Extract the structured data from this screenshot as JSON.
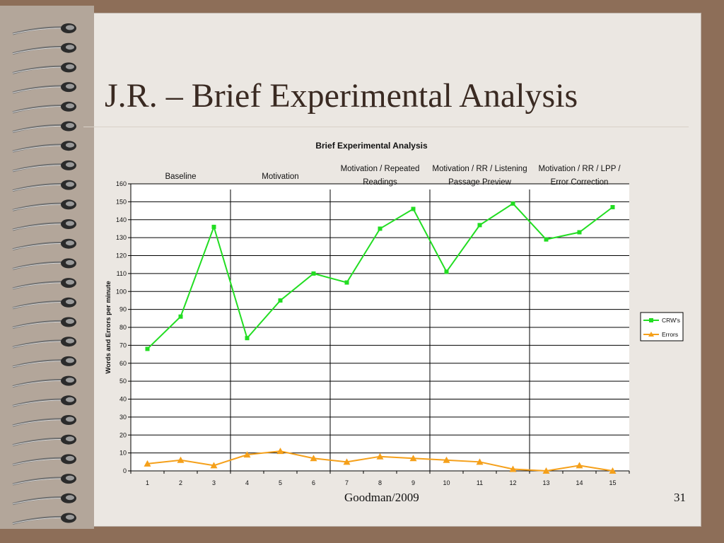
{
  "slide": {
    "title": "J.R. – Brief Experimental Analysis",
    "footer": "Goodman/2009",
    "page_number": "31"
  },
  "colors": {
    "crws": "#22dd22",
    "errors": "#f5a01a",
    "background": "#ebe7e2",
    "frame": "#8d6e58"
  },
  "chart_data": {
    "type": "line",
    "title": "Brief Experimental Analysis",
    "ylabel": "Words and Errors per minute",
    "xlabel": "",
    "x": [
      1,
      2,
      3,
      4,
      5,
      6,
      7,
      8,
      9,
      10,
      11,
      12,
      13,
      14,
      15
    ],
    "ylim": [
      0,
      160
    ],
    "yticks": [
      0,
      10,
      20,
      30,
      40,
      50,
      60,
      70,
      80,
      90,
      100,
      110,
      120,
      130,
      140,
      150,
      160
    ],
    "grid": true,
    "legend_position": "right",
    "phases": [
      {
        "label_lines": [
          "Baseline"
        ],
        "sessions": [
          1,
          3
        ]
      },
      {
        "label_lines": [
          "Motivation"
        ],
        "sessions": [
          4,
          6
        ]
      },
      {
        "label_lines": [
          "Motivation / Repeated",
          "Readings"
        ],
        "sessions": [
          7,
          9
        ]
      },
      {
        "label_lines": [
          "Motivation / RR / Listening",
          "Passage Preview"
        ],
        "sessions": [
          10,
          12
        ]
      },
      {
        "label_lines": [
          "Motivation / RR / LPP /",
          "Error Correction"
        ],
        "sessions": [
          13,
          15
        ]
      }
    ],
    "series": [
      {
        "name": "CRW's",
        "marker": "square",
        "values": [
          68,
          86,
          136,
          74,
          95,
          110,
          105,
          135,
          146,
          111,
          137,
          149,
          129,
          133,
          147
        ]
      },
      {
        "name": "Errors",
        "marker": "triangle",
        "values": [
          4,
          6,
          3,
          9,
          11,
          7,
          5,
          8,
          7,
          6,
          5,
          1,
          0,
          3,
          0
        ]
      }
    ]
  }
}
